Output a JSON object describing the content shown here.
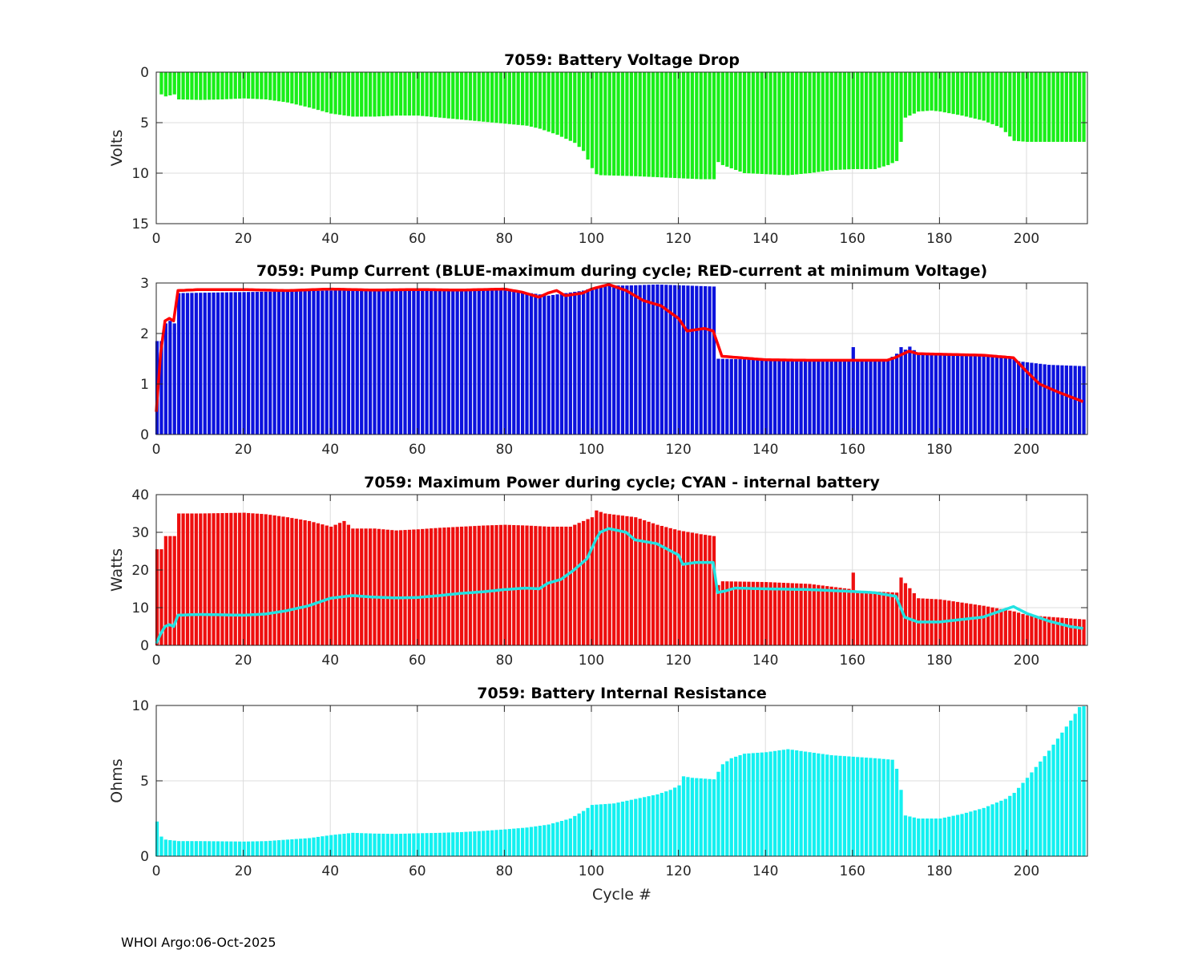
{
  "footer": "WHOI Argo:06-Oct-2025",
  "chart_data": [
    {
      "type": "bar",
      "title": "7059: Battery Voltage Drop",
      "xlabel": "",
      "ylabel": "Volts",
      "xlim": [
        0,
        214
      ],
      "ylim": [
        0,
        15
      ],
      "y_reversed": true,
      "xticks": [
        "0",
        "20",
        "40",
        "60",
        "80",
        "100",
        "120",
        "140",
        "160",
        "180",
        "200"
      ],
      "yticks": [
        "0",
        "5",
        "10",
        "15"
      ],
      "bar_color": "#19ee19",
      "series_keypoints": [
        [
          1,
          2.2
        ],
        [
          2,
          2.4
        ],
        [
          3,
          2.3
        ],
        [
          4,
          2.2
        ],
        [
          5,
          2.7
        ],
        [
          10,
          2.75
        ],
        [
          15,
          2.7
        ],
        [
          20,
          2.6
        ],
        [
          25,
          2.7
        ],
        [
          30,
          3.0
        ],
        [
          35,
          3.5
        ],
        [
          40,
          4.1
        ],
        [
          45,
          4.4
        ],
        [
          50,
          4.4
        ],
        [
          55,
          4.3
        ],
        [
          60,
          4.3
        ],
        [
          65,
          4.5
        ],
        [
          70,
          4.7
        ],
        [
          75,
          4.9
        ],
        [
          80,
          5.1
        ],
        [
          85,
          5.3
        ],
        [
          88,
          5.6
        ],
        [
          92,
          6.2
        ],
        [
          96,
          7.0
        ],
        [
          98,
          7.8
        ],
        [
          100,
          9.5
        ],
        [
          101,
          10.1
        ],
        [
          102,
          10.2
        ],
        [
          110,
          10.3
        ],
        [
          115,
          10.4
        ],
        [
          120,
          10.5
        ],
        [
          125,
          10.6
        ],
        [
          128,
          10.6
        ],
        [
          129,
          8.9
        ],
        [
          130,
          9.2
        ],
        [
          135,
          10.0
        ],
        [
          140,
          10.1
        ],
        [
          145,
          10.2
        ],
        [
          150,
          10.0
        ],
        [
          155,
          9.7
        ],
        [
          160,
          9.6
        ],
        [
          165,
          9.6
        ],
        [
          168,
          9.2
        ],
        [
          170,
          8.8
        ],
        [
          171,
          6.9
        ],
        [
          172,
          4.5
        ],
        [
          175,
          3.9
        ],
        [
          178,
          3.8
        ],
        [
          180,
          3.9
        ],
        [
          185,
          4.3
        ],
        [
          190,
          4.8
        ],
        [
          194,
          5.5
        ],
        [
          197,
          6.8
        ],
        [
          200,
          6.9
        ],
        [
          214,
          6.9
        ]
      ]
    },
    {
      "type": "bar",
      "title": "7059: Pump Current (BLUE-maximum during cycle; RED-current at minimum Voltage)",
      "xlabel": "",
      "ylabel": "",
      "xlim": [
        0,
        214
      ],
      "ylim": [
        0,
        3
      ],
      "xticks": [
        "0",
        "20",
        "40",
        "60",
        "80",
        "100",
        "120",
        "140",
        "160",
        "180",
        "200"
      ],
      "yticks": [
        "0",
        "1",
        "2",
        "3"
      ],
      "bar_color": "#0c12dd",
      "line_color": "#ff0000",
      "bar_keypoints": [
        [
          1,
          1.85
        ],
        [
          2,
          2.2
        ],
        [
          3,
          2.25
        ],
        [
          4,
          2.2
        ],
        [
          5,
          2.8
        ],
        [
          20,
          2.82
        ],
        [
          40,
          2.85
        ],
        [
          60,
          2.85
        ],
        [
          80,
          2.87
        ],
        [
          90,
          2.75
        ],
        [
          98,
          2.85
        ],
        [
          100,
          2.9
        ],
        [
          103,
          2.95
        ],
        [
          108,
          2.95
        ],
        [
          115,
          2.97
        ],
        [
          128,
          2.93
        ],
        [
          129,
          1.5
        ],
        [
          140,
          1.48
        ],
        [
          150,
          1.46
        ],
        [
          159,
          1.48
        ],
        [
          160,
          1.73
        ],
        [
          161,
          1.47
        ],
        [
          168,
          1.48
        ],
        [
          170,
          1.6
        ],
        [
          171,
          1.73
        ],
        [
          172,
          1.68
        ],
        [
          173,
          1.74
        ],
        [
          175,
          1.6
        ],
        [
          190,
          1.57
        ],
        [
          196,
          1.53
        ],
        [
          198,
          1.45
        ],
        [
          205,
          1.38
        ],
        [
          214,
          1.35
        ]
      ],
      "line_keypoints": [
        [
          0,
          0.45
        ],
        [
          1,
          1.6
        ],
        [
          2,
          2.25
        ],
        [
          3,
          2.3
        ],
        [
          4,
          2.25
        ],
        [
          5,
          2.85
        ],
        [
          10,
          2.87
        ],
        [
          20,
          2.87
        ],
        [
          30,
          2.85
        ],
        [
          40,
          2.88
        ],
        [
          50,
          2.86
        ],
        [
          60,
          2.87
        ],
        [
          70,
          2.86
        ],
        [
          80,
          2.88
        ],
        [
          84,
          2.82
        ],
        [
          88,
          2.72
        ],
        [
          90,
          2.8
        ],
        [
          92,
          2.85
        ],
        [
          94,
          2.75
        ],
        [
          98,
          2.8
        ],
        [
          100,
          2.88
        ],
        [
          104,
          2.97
        ],
        [
          108,
          2.85
        ],
        [
          112,
          2.65
        ],
        [
          116,
          2.55
        ],
        [
          120,
          2.3
        ],
        [
          122,
          2.05
        ],
        [
          126,
          2.1
        ],
        [
          128,
          2.05
        ],
        [
          130,
          1.55
        ],
        [
          140,
          1.48
        ],
        [
          150,
          1.47
        ],
        [
          160,
          1.47
        ],
        [
          168,
          1.47
        ],
        [
          170,
          1.53
        ],
        [
          173,
          1.65
        ],
        [
          175,
          1.6
        ],
        [
          190,
          1.57
        ],
        [
          197,
          1.52
        ],
        [
          200,
          1.25
        ],
        [
          203,
          1.0
        ],
        [
          207,
          0.85
        ],
        [
          210,
          0.75
        ],
        [
          213,
          0.65
        ]
      ]
    },
    {
      "type": "bar",
      "title": "7059: Maximum Power during cycle; CYAN - internal battery",
      "xlabel": "",
      "ylabel": "Watts",
      "xlim": [
        0,
        214
      ],
      "ylim": [
        0,
        40
      ],
      "xticks": [
        "0",
        "20",
        "40",
        "60",
        "80",
        "100",
        "120",
        "140",
        "160",
        "180",
        "200"
      ],
      "yticks": [
        "0",
        "10",
        "20",
        "30",
        "40"
      ],
      "bar_color": "#ee0f0f",
      "line_color": "#22e2e2",
      "bar_keypoints": [
        [
          1,
          25.5
        ],
        [
          2,
          29
        ],
        [
          4,
          29
        ],
        [
          5,
          35
        ],
        [
          10,
          35
        ],
        [
          20,
          35.2
        ],
        [
          25,
          34.8
        ],
        [
          30,
          34
        ],
        [
          35,
          33
        ],
        [
          40,
          31.5
        ],
        [
          43,
          33
        ],
        [
          45,
          31
        ],
        [
          50,
          31
        ],
        [
          55,
          30.5
        ],
        [
          60,
          30.8
        ],
        [
          65,
          31.2
        ],
        [
          70,
          31.5
        ],
        [
          75,
          31.8
        ],
        [
          80,
          32
        ],
        [
          85,
          31.8
        ],
        [
          90,
          31.5
        ],
        [
          95,
          31.5
        ],
        [
          100,
          34
        ],
        [
          101,
          35.8
        ],
        [
          103,
          35
        ],
        [
          110,
          34
        ],
        [
          115,
          32
        ],
        [
          120,
          30.5
        ],
        [
          125,
          29.5
        ],
        [
          128,
          29
        ],
        [
          129,
          16
        ],
        [
          130,
          17
        ],
        [
          140,
          16.8
        ],
        [
          150,
          16.3
        ],
        [
          159,
          15
        ],
        [
          160,
          19.3
        ],
        [
          161,
          14.5
        ],
        [
          170,
          14
        ],
        [
          171,
          18
        ],
        [
          172,
          16.5
        ],
        [
          175,
          12.5
        ],
        [
          180,
          12.2
        ],
        [
          190,
          10.5
        ],
        [
          197,
          9
        ],
        [
          200,
          8
        ],
        [
          214,
          6.8
        ]
      ],
      "line_keypoints": [
        [
          0,
          0.5
        ],
        [
          1,
          3
        ],
        [
          2,
          5
        ],
        [
          3,
          5.5
        ],
        [
          4,
          5
        ],
        [
          5,
          8
        ],
        [
          10,
          8.2
        ],
        [
          20,
          8
        ],
        [
          25,
          8.3
        ],
        [
          30,
          9.2
        ],
        [
          35,
          10.5
        ],
        [
          40,
          12.5
        ],
        [
          45,
          13.2
        ],
        [
          50,
          12.8
        ],
        [
          55,
          12.6
        ],
        [
          60,
          12.7
        ],
        [
          65,
          13.2
        ],
        [
          70,
          13.8
        ],
        [
          75,
          14.2
        ],
        [
          80,
          14.8
        ],
        [
          85,
          15.2
        ],
        [
          88,
          15
        ],
        [
          90,
          16.5
        ],
        [
          93,
          17.5
        ],
        [
          96,
          20
        ],
        [
          99,
          23
        ],
        [
          101,
          28
        ],
        [
          102,
          30
        ],
        [
          104,
          31
        ],
        [
          108,
          30
        ],
        [
          110,
          28
        ],
        [
          115,
          27
        ],
        [
          120,
          24
        ],
        [
          121,
          21.5
        ],
        [
          124,
          22
        ],
        [
          128,
          22
        ],
        [
          129,
          14
        ],
        [
          131,
          14.5
        ],
        [
          133,
          15.2
        ],
        [
          140,
          15
        ],
        [
          150,
          14.8
        ],
        [
          160,
          14.3
        ],
        [
          165,
          14
        ],
        [
          170,
          13
        ],
        [
          172,
          7.5
        ],
        [
          175,
          6.2
        ],
        [
          180,
          6.2
        ],
        [
          190,
          7.5
        ],
        [
          195,
          9.5
        ],
        [
          197,
          10.3
        ],
        [
          200,
          8.5
        ],
        [
          205,
          6.5
        ],
        [
          210,
          5
        ],
        [
          213,
          4.5
        ]
      ]
    },
    {
      "type": "bar",
      "title": "7059: Battery Internal Resistance",
      "xlabel": "Cycle #",
      "ylabel": "Ohms",
      "xlim": [
        0,
        214
      ],
      "ylim": [
        0,
        10
      ],
      "xticks": [
        "0",
        "20",
        "40",
        "60",
        "80",
        "100",
        "120",
        "140",
        "160",
        "180",
        "200"
      ],
      "yticks": [
        "0",
        "5",
        "10"
      ],
      "bar_color": "#14f0f0",
      "series_keypoints": [
        [
          0,
          2.3
        ],
        [
          1,
          1.3
        ],
        [
          2,
          1.1
        ],
        [
          5,
          1.0
        ],
        [
          10,
          1.0
        ],
        [
          20,
          0.97
        ],
        [
          25,
          1.0
        ],
        [
          30,
          1.1
        ],
        [
          35,
          1.2
        ],
        [
          40,
          1.4
        ],
        [
          45,
          1.55
        ],
        [
          50,
          1.5
        ],
        [
          55,
          1.48
        ],
        [
          60,
          1.52
        ],
        [
          65,
          1.55
        ],
        [
          70,
          1.6
        ],
        [
          75,
          1.68
        ],
        [
          80,
          1.78
        ],
        [
          85,
          1.9
        ],
        [
          90,
          2.1
        ],
        [
          95,
          2.5
        ],
        [
          98,
          3.0
        ],
        [
          100,
          3.4
        ],
        [
          105,
          3.5
        ],
        [
          110,
          3.8
        ],
        [
          115,
          4.1
        ],
        [
          118,
          4.4
        ],
        [
          120,
          4.7
        ],
        [
          121,
          5.3
        ],
        [
          123,
          5.2
        ],
        [
          128,
          5.1
        ],
        [
          130,
          6.1
        ],
        [
          132,
          6.5
        ],
        [
          135,
          6.8
        ],
        [
          140,
          6.9
        ],
        [
          145,
          7.1
        ],
        [
          150,
          6.9
        ],
        [
          155,
          6.7
        ],
        [
          160,
          6.6
        ],
        [
          165,
          6.5
        ],
        [
          169,
          6.4
        ],
        [
          170,
          5.8
        ],
        [
          171,
          4.4
        ],
        [
          172,
          2.7
        ],
        [
          175,
          2.5
        ],
        [
          180,
          2.5
        ],
        [
          185,
          2.8
        ],
        [
          190,
          3.2
        ],
        [
          195,
          3.8
        ],
        [
          197,
          4.2
        ],
        [
          200,
          5.2
        ],
        [
          205,
          7.0
        ],
        [
          210,
          9.0
        ],
        [
          212,
          9.9
        ],
        [
          214,
          10
        ]
      ]
    }
  ]
}
